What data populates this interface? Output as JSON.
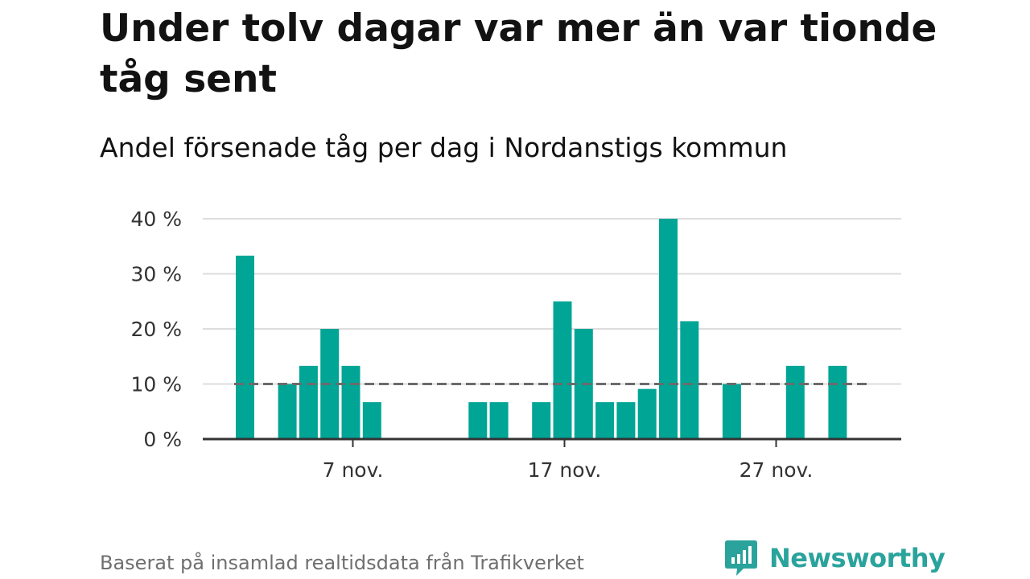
{
  "title": "Under tolv dagar var mer än var tionde tåg sent",
  "subtitle": "Andel försenade tåg per dag i Nordanstigs kommun",
  "source": "Baserat på insamlad realtidsdata från Trafikverket",
  "logo": {
    "text": "Newsworthy",
    "icon": "newsworthy-logo-icon"
  },
  "colors": {
    "bar": "#00a596",
    "reference_line": "#6b6b6b",
    "grid": "#dddddd",
    "axis": "#333333",
    "logo": "#2aa39c"
  },
  "chart_data": {
    "type": "bar",
    "x_unit": "day of November",
    "categories": [
      "2 nov.",
      "3 nov.",
      "4 nov.",
      "5 nov.",
      "6 nov.",
      "7 nov.",
      "8 nov.",
      "9 nov.",
      "10 nov.",
      "11 nov.",
      "12 nov.",
      "13 nov.",
      "14 nov.",
      "15 nov.",
      "16 nov.",
      "17 nov.",
      "18 nov.",
      "19 nov.",
      "20 nov.",
      "21 nov.",
      "22 nov.",
      "23 nov.",
      "24 nov.",
      "25 nov.",
      "26 nov.",
      "27 nov.",
      "28 nov.",
      "29 nov.",
      "30 nov."
    ],
    "values": [
      33.3,
      0,
      10,
      13.3,
      20,
      13.3,
      6.7,
      0,
      0,
      0,
      0,
      6.7,
      6.7,
      0,
      6.7,
      25,
      20,
      6.7,
      6.7,
      9.1,
      40,
      21.4,
      0,
      10,
      0,
      0,
      13.3,
      0,
      13.3
    ],
    "reference_line": {
      "value": 10,
      "style": "dashed"
    },
    "ylim": [
      0,
      40
    ],
    "y_ticks": [
      0,
      10,
      20,
      30,
      40
    ],
    "y_tick_labels": [
      "0 %",
      "10 %",
      "20 %",
      "30 %",
      "40 %"
    ],
    "x_ticks": [
      {
        "day": 7,
        "label": "7 nov."
      },
      {
        "day": 17,
        "label": "17 nov."
      },
      {
        "day": 27,
        "label": "27 nov."
      }
    ],
    "grid": true,
    "legend": "none"
  }
}
